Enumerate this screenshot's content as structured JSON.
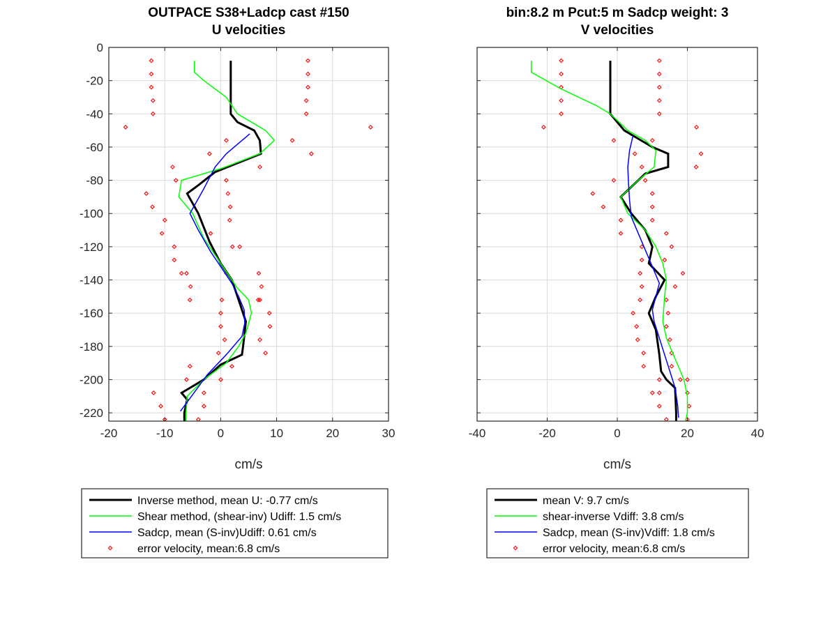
{
  "chart_data": [
    {
      "type": "line",
      "title": [
        "OUTPACE S38+Ladcp cast #150",
        "U velocities"
      ],
      "xlabel": "cm/s",
      "ylabel": "",
      "xlim": [
        -20,
        30
      ],
      "ylim": [
        -225,
        0
      ],
      "xticks": [
        -20,
        -10,
        0,
        10,
        20,
        30
      ],
      "yticks": [
        0,
        -20,
        -40,
        -60,
        -80,
        -100,
        -120,
        -140,
        -160,
        -180,
        -200,
        -220
      ],
      "grid": true,
      "legend_position": "bottom",
      "series": [
        {
          "name": "Inverse method, mean U:  -0.77 cm/s",
          "color": "#000000",
          "width": 3,
          "x": [
            1.8,
            1.8,
            1.8,
            3,
            6,
            7,
            7.2,
            2,
            -1,
            -4,
            -6,
            -4,
            -2,
            0,
            2,
            3,
            4.5,
            4,
            3.8,
            0,
            -3,
            -7,
            -6,
            -6.5,
            -6.5
          ],
          "y": [
            -8,
            -30,
            -40,
            -45,
            -50,
            -56,
            -64,
            -71,
            -75,
            -83,
            -88,
            -100,
            -117,
            -130,
            -140,
            -150,
            -165,
            -180,
            -185,
            -191,
            -200,
            -208,
            -212,
            -220,
            -225
          ]
        },
        {
          "name": "Shear method, (shear-inv)  Udiff:  1.5 cm/s",
          "color": "#00ff00",
          "width": 1.5,
          "x": [
            -4.7,
            -4.7,
            -3,
            1,
            2,
            3,
            8,
            9.6,
            7,
            0,
            -7,
            -7.5,
            -5,
            -3,
            -1,
            1,
            3,
            5,
            5.5,
            4.5,
            3.2,
            1,
            -3,
            -6,
            -6.2,
            -6.2
          ],
          "y": [
            -8,
            -15,
            -20,
            -30,
            -35,
            -40,
            -50,
            -56,
            -64,
            -73,
            -80,
            -90,
            -100,
            -115,
            -125,
            -135,
            -145,
            -152,
            -160,
            -172,
            -180,
            -190,
            -200,
            -210,
            -220,
            -225
          ]
        },
        {
          "name": "Sadcp, mean (S-inv)Udiff: 0.61 cm/s",
          "color": "#0000ff",
          "width": 1.5,
          "x": [
            5.2,
            1,
            -1,
            -3,
            -5.5,
            -4,
            -1.8,
            0.4,
            2,
            3.2,
            4.2,
            4.3,
            3.8,
            1,
            -2.4,
            -5,
            -7.2
          ],
          "y": [
            -52,
            -64,
            -72,
            -85,
            -100,
            -110,
            -123,
            -134,
            -142,
            -150,
            -158,
            -166,
            -174,
            -185,
            -197,
            -209,
            -219
          ]
        },
        {
          "name": "error velocity, mean:6.8 cm/s",
          "color": "#ff0000",
          "marker": "diamond",
          "x": [
            -12.4,
            15.6,
            -12.4,
            15.6,
            -12.4,
            15.6,
            -12.1,
            15.3,
            -12.1,
            15.3,
            -17,
            26.8,
            1,
            12.8,
            -2,
            16.2,
            -8.6,
            7,
            -8,
            1,
            -13.3,
            1.3,
            -12.2,
            1.7,
            -10,
            1.6,
            -10.5,
            -1.8,
            -8.3,
            2.1,
            -8.3,
            3.4,
            -7,
            1,
            -6.1,
            6.8,
            -5.4,
            7.3,
            -5.5,
            7,
            0.2,
            6.7,
            0,
            8.7,
            0,
            8.8,
            0.7,
            7,
            -0.4,
            8,
            -5.5,
            2,
            -6.1,
            0,
            -12,
            -3,
            -10.7,
            -3,
            -10,
            -4
          ],
          "y": [
            -8,
            -8,
            -16,
            -16,
            -24,
            -24,
            -32,
            -32,
            -40,
            -40,
            -48,
            -48,
            -56,
            -56,
            -64,
            -64,
            -72,
            -72,
            -80,
            -80,
            -88,
            -88,
            -96,
            -96,
            -104,
            -104,
            -112,
            -112,
            -120,
            -120,
            -128,
            -120,
            -136,
            -136,
            -136,
            -136,
            -144,
            -144,
            -152,
            -152,
            -152,
            -152,
            -160,
            -160,
            -168,
            -168,
            -176,
            -176,
            -184,
            -184,
            -192,
            -192,
            -200,
            -200,
            -208,
            -208,
            -216,
            -216,
            -224,
            -224
          ]
        }
      ]
    },
    {
      "type": "line",
      "title": [
        "bin:8.2 m  Pcut:5 m  Sadcp weight: 3",
        "V velocities"
      ],
      "xlabel": "cm/s",
      "ylabel": "",
      "xlim": [
        -40,
        40
      ],
      "ylim": [
        -225,
        0
      ],
      "xticks": [
        -40,
        -20,
        0,
        20,
        40
      ],
      "yticks": [
        0,
        -20,
        -40,
        -60,
        -80,
        -100,
        -120,
        -140,
        -160,
        -180,
        -200,
        -220
      ],
      "grid": true,
      "legend_position": "bottom",
      "series": [
        {
          "name": "mean V:  9.7 cm/s",
          "color": "#000000",
          "width": 3,
          "x": [
            -2,
            -2,
            -2,
            0,
            2,
            6,
            10,
            14.5,
            14.5,
            8,
            1,
            4,
            8,
            10,
            9,
            13.5,
            11,
            9,
            11,
            12,
            12.5,
            14,
            16.5,
            16.8,
            16.8
          ],
          "y": [
            -8,
            -30,
            -40,
            -45,
            -50,
            -55,
            -60,
            -64,
            -72,
            -76,
            -90,
            -100,
            -110,
            -120,
            -130,
            -140,
            -150,
            -160,
            -170,
            -185,
            -195,
            -200,
            -205,
            -220,
            -225
          ]
        },
        {
          "name": "shear-inverse Vdiff:  3.8 cm/s",
          "color": "#00ff00",
          "width": 1.5,
          "x": [
            -24.5,
            -24.5,
            -16,
            -6,
            -2,
            3,
            8,
            11,
            10.5,
            6,
            1,
            3,
            8,
            11,
            13,
            14,
            13.5,
            13,
            14,
            16,
            18,
            19,
            20,
            20,
            19.5
          ],
          "y": [
            -8,
            -15,
            -25,
            -35,
            -40,
            -50,
            -56,
            -62,
            -72,
            -80,
            -90,
            -100,
            -110,
            -120,
            -130,
            -140,
            -150,
            -165,
            -175,
            -185,
            -195,
            -200,
            -210,
            -220,
            -225
          ]
        },
        {
          "name": "Sadcp, mean (S-inv)Vdiff: 1.8 cm/s",
          "color": "#0000ff",
          "width": 1.5,
          "x": [
            4.5,
            3.5,
            3,
            3.2,
            3.5,
            4,
            6,
            8,
            10,
            12,
            11,
            10,
            10.5,
            12,
            13.5,
            15,
            16.5,
            17.2,
            17.5
          ],
          "y": [
            -53,
            -62,
            -72,
            -82,
            -92,
            -102,
            -112,
            -122,
            -132,
            -142,
            -150,
            -158,
            -165,
            -175,
            -185,
            -195,
            -205,
            -215,
            -223
          ]
        },
        {
          "name": "error velocity, mean:6.8 cm/s",
          "color": "#ff0000",
          "marker": "diamond",
          "x": [
            -16,
            12,
            -16,
            12,
            -16,
            12,
            -16,
            12,
            -16,
            12,
            -21,
            22.6,
            -1,
            10,
            5,
            23.9,
            7,
            22.5,
            -1,
            8,
            -7,
            10,
            -4,
            10,
            1,
            10,
            1,
            14,
            7,
            15.5,
            7,
            13.5,
            6.5,
            18.7,
            7,
            16.5,
            6.5,
            14,
            4.5,
            14.5,
            5.5,
            14,
            5.8,
            15,
            7.5,
            15.5,
            7.5,
            15.5,
            12,
            18,
            10,
            20,
            12,
            20,
            12,
            20.5,
            14,
            20
          ],
          "y": [
            -8,
            -8,
            -16,
            -16,
            -24,
            -24,
            -32,
            -32,
            -40,
            -40,
            -48,
            -48,
            -56,
            -56,
            -64,
            -64,
            -72,
            -72,
            -80,
            -80,
            -88,
            -88,
            -96,
            -96,
            -104,
            -104,
            -112,
            -112,
            -120,
            -120,
            -128,
            -128,
            -136,
            -136,
            -144,
            -144,
            -152,
            -152,
            -160,
            -160,
            -168,
            -168,
            -176,
            -176,
            -184,
            -184,
            -192,
            -192,
            -200,
            -200,
            -208,
            -200,
            -208,
            -208,
            -216,
            -216,
            -224,
            -224
          ]
        }
      ]
    }
  ]
}
